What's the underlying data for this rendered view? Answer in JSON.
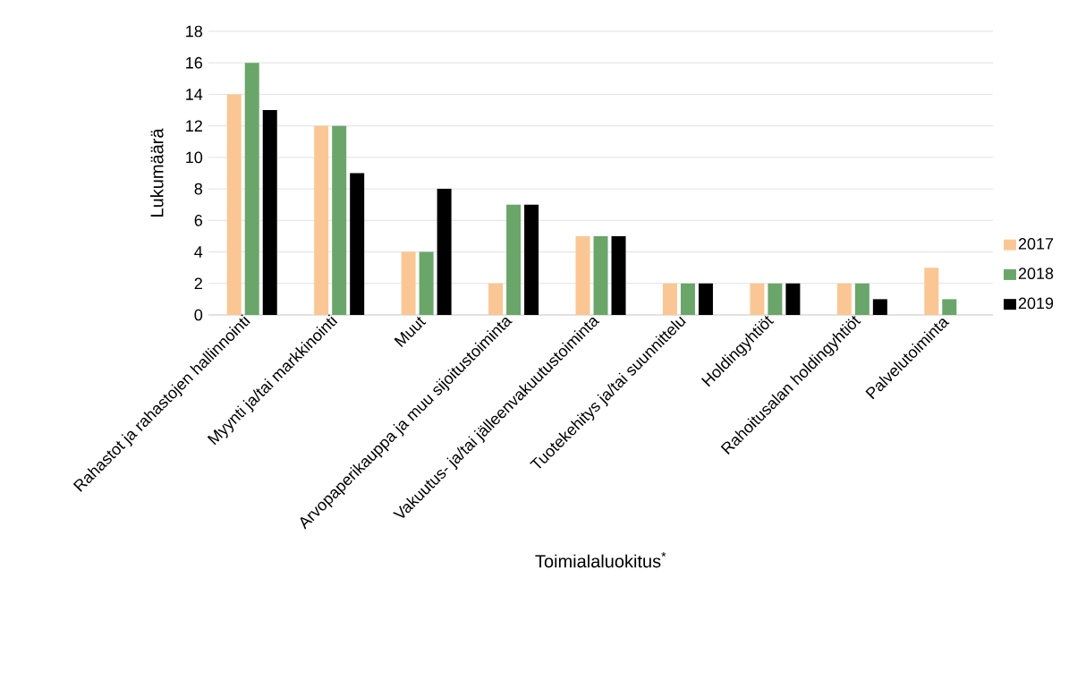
{
  "chart_data": {
    "type": "bar",
    "xlabel": "Toimialaluokitus$^{*}$",
    "ylabel": "Lukumäärä",
    "categories": [
      "Rahastot ja rahastojen hallinnointi",
      "Myynti ja/tai markkinointi",
      "Muut",
      "Arvopaperikauppa ja muu sijoitustoiminta",
      "Vakuutus- ja/tai jälleenvakuutustoiminta",
      "Tuotekehitys ja/tai suunnittelu",
      "Holdingyhtiöt",
      "Rahoitusalan holdingyhtiöt",
      "Palvelutoiminta"
    ],
    "series": [
      {
        "name": "2017",
        "color": "#fac794",
        "values": [
          14,
          12,
          4,
          2,
          5,
          2,
          2,
          2,
          3
        ]
      },
      {
        "name": "2018",
        "color": "#6aa56a",
        "values": [
          16,
          12,
          4,
          7,
          5,
          2,
          2,
          2,
          1
        ]
      },
      {
        "name": "2019",
        "color": "#000000",
        "values": [
          13,
          9,
          8,
          7,
          5,
          2,
          2,
          1,
          null
        ]
      }
    ],
    "ylim": [
      0,
      18
    ],
    "yticks": [
      0,
      2,
      4,
      6,
      8,
      10,
      12,
      14,
      16,
      18
    ],
    "grid": "y",
    "legend": "right"
  }
}
